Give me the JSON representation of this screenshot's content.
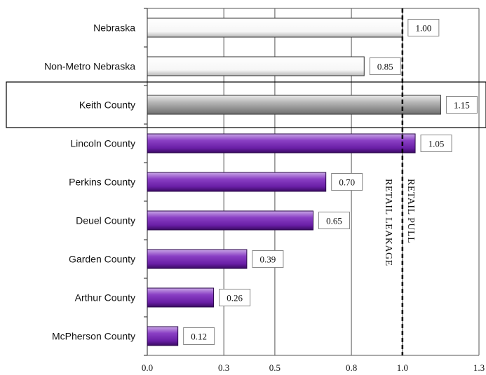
{
  "chart_data": {
    "type": "bar",
    "orientation": "horizontal",
    "categories": [
      "Nebraska",
      "Non-Metro Nebraska",
      "Keith County",
      "Lincoln County",
      "Perkins County",
      "Deuel County",
      "Garden County",
      "Arthur County",
      "McPherson County"
    ],
    "values": [
      1.0,
      0.85,
      1.15,
      1.05,
      0.7,
      0.65,
      0.39,
      0.26,
      0.12
    ],
    "value_labels": [
      "1.00",
      "0.85",
      "1.15",
      "1.05",
      "0.70",
      "0.65",
      "0.39",
      "0.26",
      "0.12"
    ],
    "bar_colors": [
      "#ffffff",
      "#ffffff",
      "#b0b0b0",
      "#7a2fb0",
      "#7a2fb0",
      "#7a2fb0",
      "#7a2fb0",
      "#7a2fb0",
      "#7a2fb0"
    ],
    "highlighted_category": "Keith County",
    "xlim": [
      0,
      1.3
    ],
    "xticks": [
      0.0,
      0.3,
      0.5,
      0.8,
      1.0,
      1.3
    ],
    "xtick_labels": [
      "0.0",
      "0.3",
      "0.5",
      "0.8",
      "1.0",
      "1.3"
    ],
    "reference_line": 1.0,
    "annotations": [
      "RETAIL LEAKAGE",
      "RETAIL PULL"
    ],
    "grid": "vertical",
    "title": "",
    "xlabel": "",
    "ylabel": ""
  }
}
